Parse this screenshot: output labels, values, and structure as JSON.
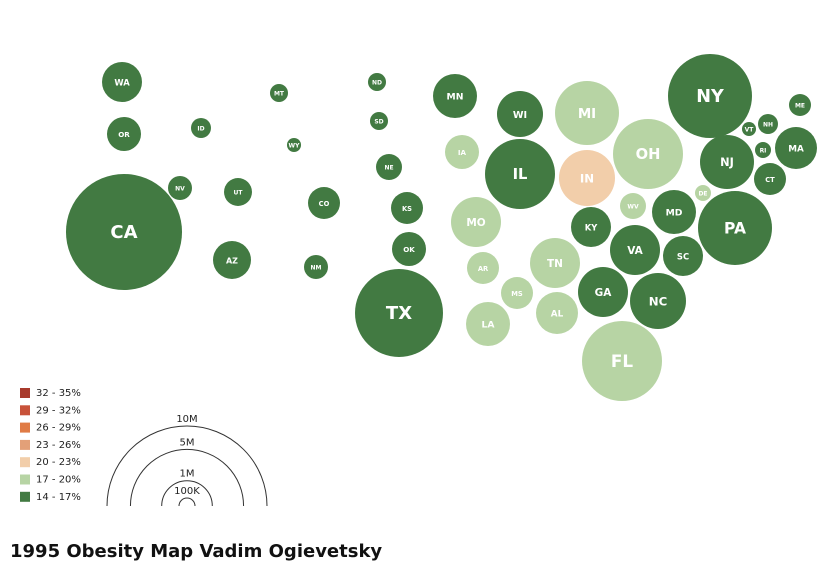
{
  "title": "1995 Obesity Map Vadim Ogievetsky",
  "legend": {
    "classes": [
      {
        "label": "32 - 35%",
        "color": "#a83a2c"
      },
      {
        "label": "29 - 32%",
        "color": "#c8523a"
      },
      {
        "label": "26 - 29%",
        "color": "#e07b45"
      },
      {
        "label": "23 - 26%",
        "color": "#e3a078"
      },
      {
        "label": "20 - 23%",
        "color": "#f2ceaa"
      },
      {
        "label": "17 - 20%",
        "color": "#b7d4a4"
      },
      {
        "label": "14 - 17%",
        "color": "#427a42"
      }
    ],
    "sizes": [
      {
        "value": 10000000,
        "label": "10M"
      },
      {
        "value": 5000000,
        "label": "5M"
      },
      {
        "value": 1000000,
        "label": "1M"
      },
      {
        "value": 100000,
        "label": "100K"
      }
    ]
  },
  "states": [
    {
      "label": "WA",
      "population": 625000,
      "color": "#427a42"
    },
    {
      "label": "OR",
      "population": 452000,
      "color": "#427a42"
    },
    {
      "label": "CA",
      "population": 5260000,
      "color": "#427a42"
    },
    {
      "label": "ID",
      "population": 156000,
      "color": "#427a42"
    },
    {
      "label": "MT",
      "population": 127000,
      "color": "#427a42"
    },
    {
      "label": "WY",
      "population": 77000,
      "color": "#427a42"
    },
    {
      "label": "NV",
      "population": 225000,
      "color": "#427a42"
    },
    {
      "label": "UT",
      "population": 306000,
      "color": "#427a42"
    },
    {
      "label": "AZ",
      "population": 564000,
      "color": "#427a42"
    },
    {
      "label": "CO",
      "population": 400000,
      "color": "#427a42"
    },
    {
      "label": "NM",
      "population": 225000,
      "color": "#427a42"
    },
    {
      "label": "ND",
      "population": 127000,
      "color": "#427a42"
    },
    {
      "label": "SD",
      "population": 127000,
      "color": "#427a42"
    },
    {
      "label": "NE",
      "population": 264000,
      "color": "#427a42"
    },
    {
      "label": "KS",
      "population": 400000,
      "color": "#427a42"
    },
    {
      "label": "OK",
      "population": 452000,
      "color": "#427a42"
    },
    {
      "label": "TX",
      "population": 3025000,
      "color": "#427a42"
    },
    {
      "label": "MN",
      "population": 756000,
      "color": "#427a42"
    },
    {
      "label": "IA",
      "population": 452000,
      "color": "#b7d4a4"
    },
    {
      "label": "MO",
      "population": 977000,
      "color": "#b7d4a4"
    },
    {
      "label": "AR",
      "population": 400000,
      "color": "#b7d4a4"
    },
    {
      "label": "LA",
      "population": 756000,
      "color": "#b7d4a4"
    },
    {
      "label": "WI",
      "population": 827000,
      "color": "#427a42"
    },
    {
      "label": "IL",
      "population": 1914000,
      "color": "#427a42"
    },
    {
      "label": "MS",
      "population": 400000,
      "color": "#b7d4a4"
    },
    {
      "label": "MI",
      "population": 1600000,
      "color": "#b7d4a4"
    },
    {
      "label": "IN",
      "population": 1225000,
      "color": "#f2ceaa"
    },
    {
      "label": "KY",
      "population": 625000,
      "color": "#427a42"
    },
    {
      "label": "TN",
      "population": 977000,
      "color": "#b7d4a4"
    },
    {
      "label": "AL",
      "population": 689000,
      "color": "#b7d4a4"
    },
    {
      "label": "OH",
      "population": 1914000,
      "color": "#b7d4a4"
    },
    {
      "label": "WV",
      "population": 264000,
      "color": "#b7d4a4"
    },
    {
      "label": "VA",
      "population": 977000,
      "color": "#427a42"
    },
    {
      "label": "GA",
      "population": 977000,
      "color": "#427a42"
    },
    {
      "label": "FL",
      "population": 2500000,
      "color": "#b7d4a4"
    },
    {
      "label": "NC",
      "population": 1225000,
      "color": "#427a42"
    },
    {
      "label": "SC",
      "population": 625000,
      "color": "#427a42"
    },
    {
      "label": "MD",
      "population": 756000,
      "color": "#427a42"
    },
    {
      "label": "DE",
      "population": 100000,
      "color": "#b7d4a4"
    },
    {
      "label": "PA",
      "population": 2139000,
      "color": "#427a42"
    },
    {
      "label": "NJ",
      "population": 1139000,
      "color": "#427a42"
    },
    {
      "label": "NY",
      "population": 2756000,
      "color": "#427a42"
    },
    {
      "label": "VT",
      "population": 77000,
      "color": "#427a42"
    },
    {
      "label": "NH",
      "population": 156000,
      "color": "#427a42"
    },
    {
      "label": "RI",
      "population": 100000,
      "color": "#427a42"
    },
    {
      "label": "MA",
      "population": 689000,
      "color": "#427a42"
    },
    {
      "label": "CT",
      "population": 400000,
      "color": "#427a42"
    },
    {
      "label": "ME",
      "population": 189000,
      "color": "#427a42"
    }
  ]
}
